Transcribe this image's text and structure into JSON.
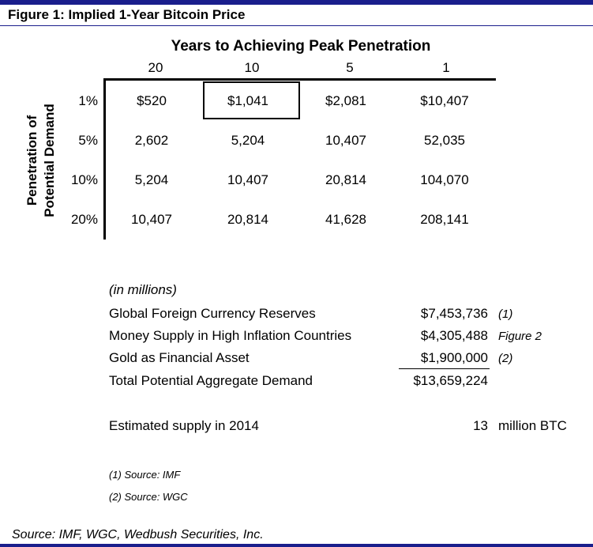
{
  "figure": {
    "title": "Figure 1: Implied 1-Year Bitcoin Price"
  },
  "table": {
    "column_title": "Years to Achieving Peak Penetration",
    "row_title_line1": "Penetration of",
    "row_title_line2": "Potential Demand",
    "columns": [
      "20",
      "10",
      "5",
      "1"
    ],
    "rows": [
      {
        "label": "1%",
        "values": [
          "$520",
          "$1,041",
          "$2,081",
          "$10,407"
        ]
      },
      {
        "label": "5%",
        "values": [
          "2,602",
          "5,204",
          "10,407",
          "52,035"
        ]
      },
      {
        "label": "10%",
        "values": [
          "5,204",
          "10,407",
          "20,814",
          "104,070"
        ]
      },
      {
        "label": "20%",
        "values": [
          "10,407",
          "20,814",
          "41,628",
          "208,141"
        ]
      }
    ],
    "highlight": {
      "row": 0,
      "column": 1
    }
  },
  "demand": {
    "unit_note": "(in millions)",
    "items": [
      {
        "label": "Global Foreign Currency Reserves",
        "value": "$7,453,736",
        "ref": "(1)"
      },
      {
        "label": "Money Supply in High Inflation Countries",
        "value": "$4,305,488",
        "ref": "Figure 2"
      },
      {
        "label": "Gold as Financial Asset",
        "value": "$1,900,000",
        "ref": "(2)"
      }
    ],
    "total": {
      "label": "Total Potential Aggregate Demand",
      "value": "$13,659,224"
    }
  },
  "supply": {
    "label": "Estimated supply in 2014",
    "value": "13",
    "unit": "million BTC"
  },
  "sources": [
    "(1) Source: IMF",
    "(2) Source: WGC"
  ],
  "footer": {
    "text": "Source: IMF, WGC, Wedbush Securities, Inc."
  },
  "colors": {
    "accent": "#1a1e8c"
  }
}
